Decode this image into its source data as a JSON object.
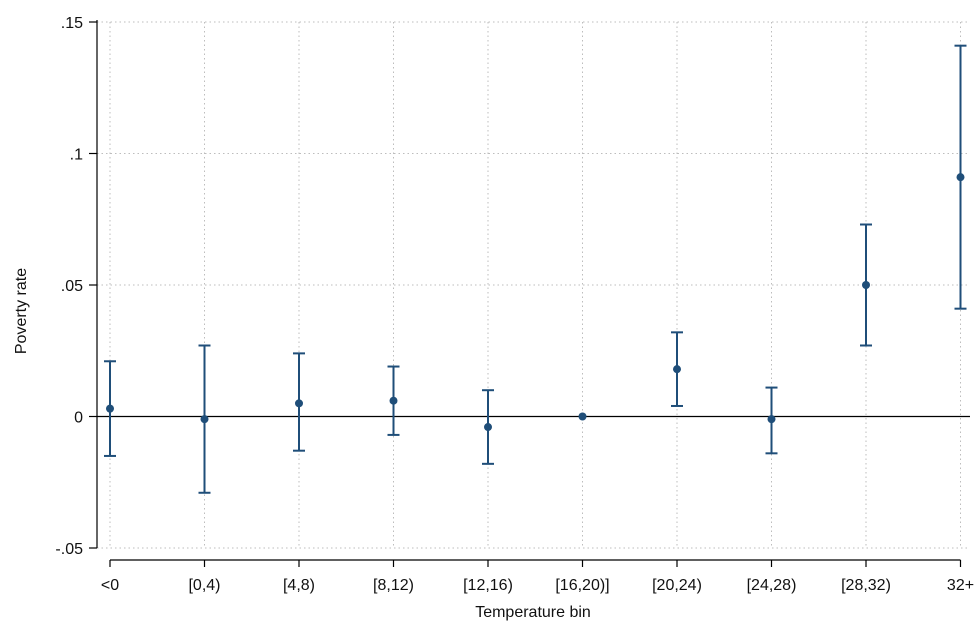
{
  "chart_data": {
    "type": "scatter",
    "title": "",
    "xlabel": "Temperature bin",
    "ylabel": "Poverty rate",
    "categories": [
      "<0",
      "[0,4)",
      "[4,8)",
      "[8,12)",
      "[12,16)",
      "[16,20)]",
      "[20,24)",
      "[24,28)",
      "[28,32)",
      "32+"
    ],
    "series": [
      {
        "values": [
          0.003,
          -0.001,
          0.005,
          0.006,
          -0.004,
          0.0,
          0.018,
          -0.001,
          0.05,
          0.091
        ],
        "ci_low": [
          -0.015,
          -0.029,
          -0.013,
          -0.007,
          -0.018,
          0.0,
          0.004,
          -0.014,
          0.027,
          0.041
        ],
        "ci_high": [
          0.021,
          0.027,
          0.024,
          0.019,
          0.01,
          0.0,
          0.032,
          0.011,
          0.073,
          0.141
        ]
      }
    ],
    "ylim": [
      -0.05,
      0.15
    ],
    "yticks": [
      {
        "value": -0.05,
        "label": "-.05"
      },
      {
        "value": 0,
        "label": "0"
      },
      {
        "value": 0.05,
        "label": ".05"
      },
      {
        "value": 0.1,
        "label": ".1"
      },
      {
        "value": 0.15,
        "label": ".15"
      }
    ],
    "grid": true,
    "reference_line_y": 0,
    "legend": "none",
    "colors": {
      "marker": "#1f4e79",
      "reference": "#000000",
      "grid": "#bdbdbd",
      "axis": "#000000"
    }
  }
}
